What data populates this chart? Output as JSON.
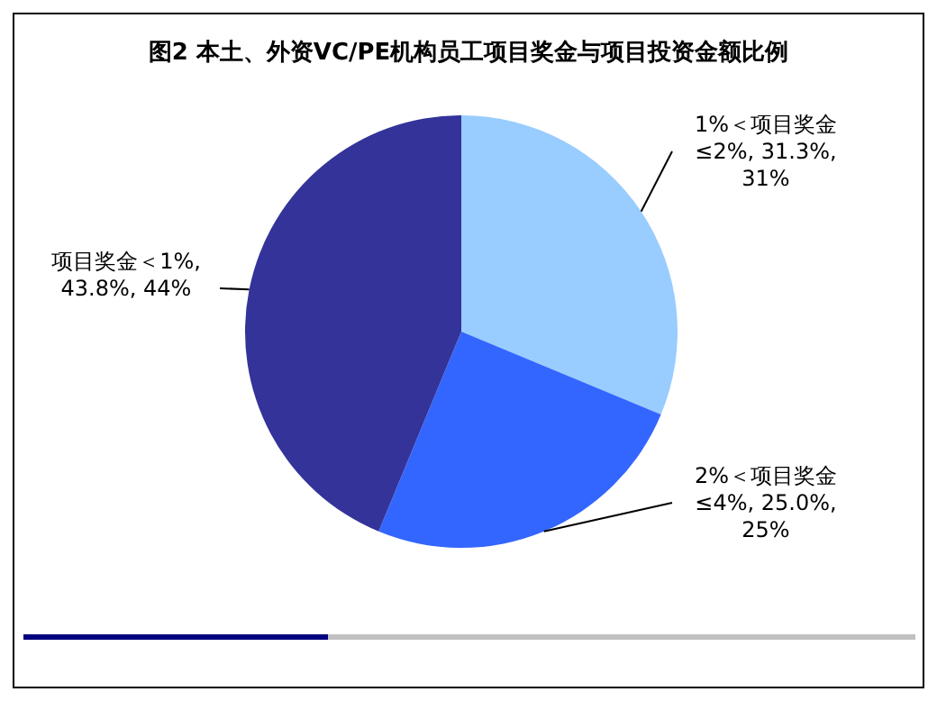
{
  "chart_data": {
    "type": "pie",
    "title": "图2 本土、外资VC/PE机构员工项目奖金与项目投资金额比例",
    "categories": [
      "1%＜项目奖金≤2%",
      "2%＜项目奖金≤4%",
      "项目奖金＜1%"
    ],
    "values": [
      31.3,
      25.0,
      43.8
    ],
    "value_labels": [
      ", 31.3%, 31%",
      ", 25.0%, 25%",
      ", 43.8%, 44%"
    ],
    "colors": [
      "#99ccff",
      "#3366ff",
      "#333399"
    ]
  }
}
